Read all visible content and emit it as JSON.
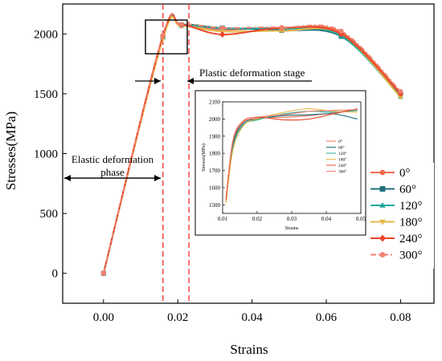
{
  "chart_data": [
    {
      "type": "line",
      "xlabel": "Strains",
      "ylabel": "Stresses(MPa)",
      "xlim": [
        -0.011,
        0.089
      ],
      "ylim": [
        -250,
        2250
      ],
      "xticks": [
        "0.00",
        "0.02",
        "0.04",
        "0.06",
        "0.08"
      ],
      "xtick_values": [
        0,
        0.02,
        0.04,
        0.06,
        0.08
      ],
      "yticks": [
        "0",
        "500",
        "1000",
        "1500",
        "2000"
      ],
      "ytick_values": [
        0,
        500,
        1000,
        1500,
        2000
      ],
      "grid": false,
      "legend_position": "right",
      "annotations": {
        "elastic": "Elastic deformation phase",
        "plastic": "Plastic deformation stage"
      },
      "reference_lines_x": [
        0.016,
        0.023
      ],
      "series": [
        {
          "name": "0°",
          "color": "#f36b4f",
          "marker": "circle",
          "dash": "solid",
          "x": [
            0,
            0.016,
            0.021,
            0.032,
            0.048,
            0.064,
            0.08
          ],
          "y": [
            0,
            1980,
            2075,
            2035,
            2050,
            2015,
            1510
          ]
        },
        {
          "name": "60°",
          "color": "#1f6f7a",
          "marker": "square",
          "dash": "solid",
          "x": [
            0,
            0.016,
            0.021,
            0.032,
            0.048,
            0.064,
            0.08
          ],
          "y": [
            0,
            1975,
            2075,
            2050,
            2030,
            1980,
            1495
          ]
        },
        {
          "name": "120°",
          "color": "#1fa89a",
          "marker": "triangle",
          "dash": "solid",
          "x": [
            0,
            0.016,
            0.021,
            0.032,
            0.048,
            0.064,
            0.08
          ],
          "y": [
            0,
            1970,
            2070,
            2045,
            2045,
            1985,
            1475
          ]
        },
        {
          "name": "180°",
          "color": "#e6b84a",
          "marker": "inverted-triangle",
          "dash": "solid",
          "x": [
            0,
            0.016,
            0.021,
            0.032,
            0.048,
            0.064,
            0.08
          ],
          "y": [
            0,
            1960,
            2065,
            2020,
            2025,
            2000,
            1470
          ]
        },
        {
          "name": "240°",
          "color": "#e8472a",
          "marker": "diamond",
          "dash": "solid",
          "x": [
            0,
            0.016,
            0.021,
            0.032,
            0.048,
            0.064,
            0.08
          ],
          "y": [
            0,
            1985,
            2075,
            1995,
            2050,
            2000,
            1500
          ]
        },
        {
          "name": "300°",
          "color": "#f08070",
          "marker": "circle",
          "dash": "dashdot",
          "x": [
            0,
            0.016,
            0.021,
            0.032,
            0.048,
            0.064,
            0.08
          ],
          "y": [
            0,
            1990,
            2080,
            2050,
            2055,
            2025,
            1520
          ]
        }
      ]
    },
    {
      "type": "line",
      "xlabel": "Strains",
      "ylabel": "Stresses(MPa)",
      "xlim": [
        0.01,
        0.05
      ],
      "ylim": [
        1450,
        2100
      ],
      "xticks": [
        "0.01",
        "0.02",
        "0.03",
        "0.04",
        "0.05"
      ],
      "xtick_values": [
        0.01,
        0.02,
        0.03,
        0.04,
        0.05
      ],
      "yticks": [
        "1500",
        "1600",
        "1700",
        "1800",
        "1900",
        "2000",
        "2100"
      ],
      "ytick_values": [
        1500,
        1600,
        1700,
        1800,
        1900,
        2000,
        2100
      ],
      "legend_position": "center-right",
      "series": [
        {
          "name": "0°",
          "color": "#f36b4f",
          "x": [
            0.011,
            0.013,
            0.016,
            0.02,
            0.028,
            0.035,
            0.042,
            0.049
          ],
          "y": [
            1520,
            1850,
            1975,
            2005,
            2010,
            2020,
            2035,
            2055
          ]
        },
        {
          "name": "60°",
          "color": "#1f6f7a",
          "x": [
            0.011,
            0.013,
            0.016,
            0.02,
            0.028,
            0.035,
            0.042,
            0.049
          ],
          "y": [
            1540,
            1860,
            1975,
            2000,
            2020,
            2025,
            2030,
            2000
          ]
        },
        {
          "name": "120°",
          "color": "#1fa89a",
          "x": [
            0.011,
            0.013,
            0.016,
            0.02,
            0.028,
            0.035,
            0.042,
            0.049
          ],
          "y": [
            1530,
            1840,
            1965,
            1995,
            2030,
            2045,
            2040,
            2050
          ]
        },
        {
          "name": "180°",
          "color": "#e6b84a",
          "x": [
            0.011,
            0.013,
            0.016,
            0.02,
            0.028,
            0.035,
            0.042,
            0.049
          ],
          "y": [
            1510,
            1820,
            1960,
            2000,
            2040,
            2060,
            2045,
            2040
          ]
        },
        {
          "name": "240°",
          "color": "#e8472a",
          "x": [
            0.011,
            0.013,
            0.016,
            0.02,
            0.028,
            0.035,
            0.042,
            0.049
          ],
          "y": [
            1530,
            1870,
            1985,
            2010,
            1995,
            2000,
            2030,
            2060
          ]
        },
        {
          "name": "300°",
          "color": "#f08070",
          "x": [
            0.011,
            0.013,
            0.016,
            0.02,
            0.028,
            0.035,
            0.042,
            0.049
          ],
          "y": [
            1550,
            1880,
            1990,
            2012,
            2025,
            2045,
            2050,
            2055
          ]
        }
      ]
    }
  ]
}
